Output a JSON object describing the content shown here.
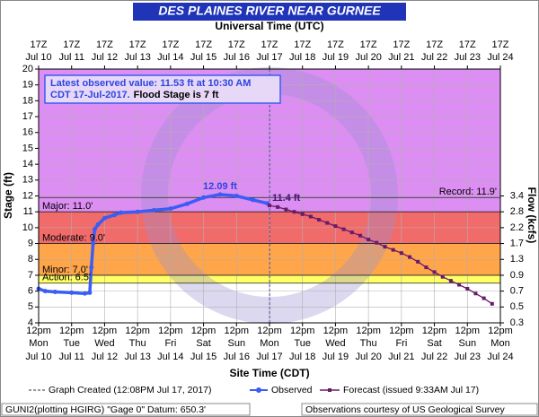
{
  "chart_data": {
    "type": "hydrograph",
    "title": "DES PLAINES RIVER NEAR GURNEE",
    "top_axis_label": "Universal Time (UTC)",
    "xlabel": "Site Time (CDT)",
    "ylabel": "Stage (ft)",
    "y2label": "Flow (kcfs)",
    "xlim": [
      10.5,
      24.5
    ],
    "ylim": [
      4,
      20
    ],
    "yticks": [
      4,
      5,
      6,
      7,
      8,
      9,
      10,
      11,
      12,
      13,
      14,
      15,
      16,
      17,
      18,
      19,
      20
    ],
    "grid": true,
    "xticks": [
      {
        "value": 10.5,
        "label": "12pm",
        "weekday": "Mon",
        "date": "Jul 10"
      },
      {
        "value": 11.5,
        "label": "12pm",
        "weekday": "Tue",
        "date": "Jul 11"
      },
      {
        "value": 12.5,
        "label": "12pm",
        "weekday": "Wed",
        "date": "Jul 12"
      },
      {
        "value": 13.5,
        "label": "12pm",
        "weekday": "Thu",
        "date": "Jul 13"
      },
      {
        "value": 14.5,
        "label": "12pm",
        "weekday": "Fri",
        "date": "Jul 14"
      },
      {
        "value": 15.5,
        "label": "12pm",
        "weekday": "Sat",
        "date": "Jul 15"
      },
      {
        "value": 16.5,
        "label": "12pm",
        "weekday": "Sun",
        "date": "Jul 16"
      },
      {
        "value": 17.5,
        "label": "12pm",
        "weekday": "Mon",
        "date": "Jul 17"
      },
      {
        "value": 18.5,
        "label": "12pm",
        "weekday": "Tue",
        "date": "Jul 18"
      },
      {
        "value": 19.5,
        "label": "12pm",
        "weekday": "Wed",
        "date": "Jul 19"
      },
      {
        "value": 20.5,
        "label": "12pm",
        "weekday": "Thu",
        "date": "Jul 20"
      },
      {
        "value": 21.5,
        "label": "12pm",
        "weekday": "Fri",
        "date": "Jul 21"
      },
      {
        "value": 22.5,
        "label": "12pm",
        "weekday": "Sat",
        "date": "Jul 22"
      },
      {
        "value": 23.5,
        "label": "12pm",
        "weekday": "Sun",
        "date": "Jul 23"
      },
      {
        "value": 24.5,
        "label": "12pm",
        "weekday": "Mon",
        "date": "Jul 24"
      }
    ],
    "x2ticks": [
      {
        "value": 10.5,
        "label": "17Z",
        "date": "Jul 10"
      },
      {
        "value": 11.5,
        "label": "17Z",
        "date": "Jul 11"
      },
      {
        "value": 12.5,
        "label": "17Z",
        "date": "Jul 12"
      },
      {
        "value": 13.5,
        "label": "17Z",
        "date": "Jul 13"
      },
      {
        "value": 14.5,
        "label": "17Z",
        "date": "Jul 14"
      },
      {
        "value": 15.5,
        "label": "17Z",
        "date": "Jul 15"
      },
      {
        "value": 16.5,
        "label": "17Z",
        "date": "Jul 16"
      },
      {
        "value": 17.5,
        "label": "17Z",
        "date": "Jul 17"
      },
      {
        "value": 18.5,
        "label": "17Z",
        "date": "Jul 18"
      },
      {
        "value": 19.5,
        "label": "17Z",
        "date": "Jul 19"
      },
      {
        "value": 20.5,
        "label": "17Z",
        "date": "Jul 20"
      },
      {
        "value": 21.5,
        "label": "17Z",
        "date": "Jul 21"
      },
      {
        "value": 22.5,
        "label": "17Z",
        "date": "Jul 22"
      },
      {
        "value": 23.5,
        "label": "17Z",
        "date": "Jul 23"
      },
      {
        "value": 24.5,
        "label": "17Z",
        "date": "Jul 24"
      }
    ],
    "y2ticks": [
      {
        "value": 3.4,
        "stage": 12
      },
      {
        "value": 2.8,
        "stage": 11
      },
      {
        "value": 2.2,
        "stage": 10
      },
      {
        "value": 1.7,
        "stage": 9
      },
      {
        "value": 1.3,
        "stage": 8
      },
      {
        "value": 0.9,
        "stage": 7
      },
      {
        "value": 0.7,
        "stage": 6
      },
      {
        "value": 0.5,
        "stage": 5
      },
      {
        "value": 0.3,
        "stage": 4
      }
    ],
    "flood_categories": [
      {
        "label": "Major: 11.0'",
        "value": 11.0,
        "color": "#f26b6b"
      },
      {
        "label": "Moderate: 9.0'",
        "value": 9.0,
        "color": "#ffa54a"
      },
      {
        "label": "Minor: 7.0'",
        "value": 7.0,
        "color": "#ffff66"
      },
      {
        "label": "Action: 6.5'",
        "value": 6.5,
        "color": "#ffffff"
      }
    ],
    "above_major_color": "#dc8ef2",
    "record": {
      "label": "Record: 11.9'",
      "value": 11.9
    },
    "series": [
      {
        "name": "Observed",
        "color": "#3b5cf5",
        "x": [
          10.5,
          10.7,
          11.0,
          11.5,
          11.9,
          12.05,
          12.1,
          12.15,
          12.2,
          12.3,
          12.5,
          12.8,
          13.0,
          13.5,
          14.0,
          14.5,
          15.0,
          15.5,
          16.0,
          16.5,
          17.0,
          17.44
        ],
        "values": [
          6.15,
          6.0,
          5.95,
          5.9,
          5.85,
          5.9,
          7.5,
          9.0,
          9.9,
          10.2,
          10.6,
          10.8,
          10.95,
          11.0,
          11.1,
          11.2,
          11.5,
          11.9,
          12.09,
          12.0,
          11.75,
          11.53
        ]
      },
      {
        "name": "Forecast (issued 9:33AM Jul 17)",
        "color": "#6a1a6a",
        "x": [
          17.5,
          17.75,
          18.0,
          18.25,
          18.5,
          18.75,
          19.0,
          19.25,
          19.5,
          19.75,
          20.0,
          20.25,
          20.5,
          20.75,
          21.0,
          21.25,
          21.5,
          21.75,
          22.0,
          22.25,
          22.5,
          22.75,
          23.0,
          23.25,
          23.5,
          23.75,
          24.0,
          24.25
        ],
        "values": [
          11.4,
          11.3,
          11.15,
          11.0,
          10.85,
          10.7,
          10.5,
          10.3,
          10.1,
          9.9,
          9.7,
          9.5,
          9.25,
          9.05,
          8.8,
          8.6,
          8.4,
          8.15,
          7.85,
          7.5,
          7.2,
          6.9,
          6.65,
          6.4,
          6.15,
          5.85,
          5.55,
          5.2
        ]
      }
    ],
    "graph_created": {
      "label": "Graph Created (12:08PM Jul 17, 2017)",
      "value": 17.505
    },
    "peak_label": "12.09 ft",
    "forecast_start_label": "11.4 ft",
    "info_line1": "Latest observed value: 11.53 ft at 10:30 AM",
    "info_line2a": "CDT 17-Jul-2017.",
    "info_line2b": "Flood Stage is 7 ft",
    "footer_left": "GUNI2(plotting HGIRG) \"Gage 0\" Datum: 650.3'",
    "footer_right": "Observations courtesy of US Geological Survey"
  }
}
